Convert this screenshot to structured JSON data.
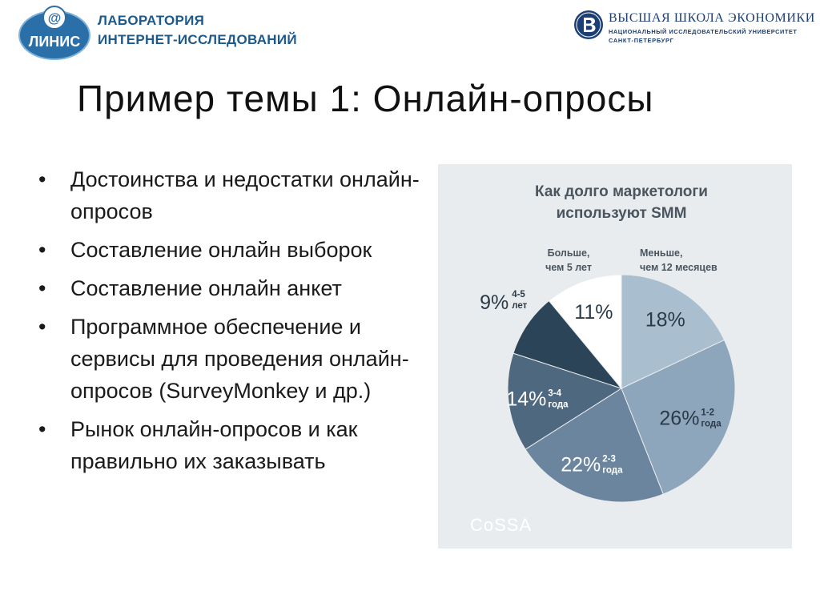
{
  "header": {
    "left_logo": {
      "badge_text": "ЛИНИС",
      "line1": "ЛАБОРАТОРИЯ",
      "line2": "ИНТЕРНЕТ-ИССЛЕДОВАНИЙ"
    },
    "right_logo": {
      "name": "ВЫСШАЯ ШКОЛА ЭКОНОМИКИ",
      "subtitle": "НАЦИОНАЛЬНЫЙ ИССЛЕДОВАТЕЛЬСКИЙ УНИВЕРСИТЕТ",
      "city": "САНКТ-ПЕТЕРБУРГ"
    }
  },
  "slide": {
    "title": "Пример темы 1: Онлайн-опросы",
    "bullet_symbol": "•",
    "bullets": [
      "Достоинства и недостатки онлайн-опросов",
      "Составление онлайн выборок",
      "Составление онлайн анкет",
      "Программное обеспечение и сервисы для проведения онлайн-опросов (SurveyMonkey  и др.)",
      "Рынок онлайн-опросов и как правильно их заказывать"
    ]
  },
  "chart_data": {
    "type": "pie",
    "title": "Как долго маркетологи используют SMM",
    "title_lines": [
      "Как долго маркетологи",
      "используют SMM"
    ],
    "source": "CoSSA",
    "unit": "%",
    "slices": [
      {
        "value": 18,
        "label": "Меньше, чем 12 месяцев",
        "label_lines": [
          "Меньше,",
          "чем 12 месяцев"
        ],
        "color": "#a9bfcf"
      },
      {
        "value": 26,
        "label": "1-2 года",
        "label_lines": [
          "1-2",
          "года"
        ],
        "color": "#8ea6bc"
      },
      {
        "value": 22,
        "label": "2-3 года",
        "label_lines": [
          "2-3",
          "года"
        ],
        "color": "#6c859e"
      },
      {
        "value": 14,
        "label": "3-4 года",
        "label_lines": [
          "3-4",
          "года"
        ],
        "color": "#4e6880"
      },
      {
        "value": 9,
        "label": "4-5 лет",
        "label_lines": [
          "4-5",
          "лет"
        ],
        "color": "#2b4457"
      },
      {
        "value": 11,
        "label": "Больше, чем 5 лет",
        "label_lines": [
          "Больше,",
          "чем 5 лет"
        ],
        "color": "#ffffff"
      }
    ]
  }
}
